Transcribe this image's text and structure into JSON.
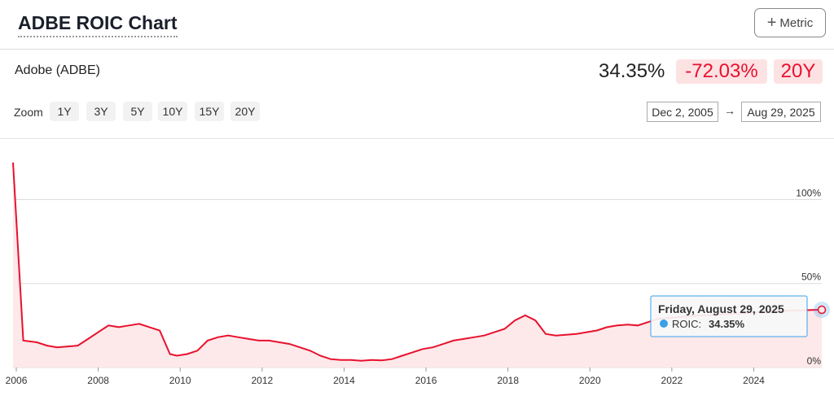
{
  "header": {
    "title": "ADBE ROIC Chart",
    "metric_button": "Metric",
    "plus_icon": "+"
  },
  "summary": {
    "company": "Adobe (ADBE)",
    "current_value": "34.35%",
    "change": "-72.03%",
    "period": "20Y"
  },
  "zoom": {
    "label": "Zoom",
    "options": [
      "1Y",
      "3Y",
      "5Y",
      "10Y",
      "15Y",
      "20Y"
    ],
    "from_date": "Dec 2, 2005",
    "arrow": "→",
    "to_date": "Aug 29, 2025"
  },
  "tooltip": {
    "date": "Friday, August 29, 2025",
    "series_label": "ROIC:",
    "value": "34.35%"
  },
  "colors": {
    "line": "#e8112d",
    "area": "#fde8ea",
    "marker": "#3aa0e8",
    "badge_bg": "#fde2e4"
  },
  "chart_data": {
    "type": "area",
    "series": [
      {
        "name": "ROIC",
        "x": [
          2005.92,
          2006.17,
          2006.5,
          2006.75,
          2007.0,
          2007.5,
          2007.75,
          2008.0,
          2008.25,
          2008.5,
          2008.75,
          2009.0,
          2009.25,
          2009.5,
          2009.75,
          2009.92,
          2010.17,
          2010.42,
          2010.67,
          2010.92,
          2011.17,
          2011.42,
          2011.67,
          2011.92,
          2012.17,
          2012.42,
          2012.67,
          2012.92,
          2013.17,
          2013.42,
          2013.67,
          2013.92,
          2014.17,
          2014.42,
          2014.67,
          2014.92,
          2015.17,
          2015.42,
          2015.67,
          2015.92,
          2016.17,
          2016.42,
          2016.67,
          2016.92,
          2017.17,
          2017.42,
          2017.67,
          2017.92,
          2018.17,
          2018.42,
          2018.67,
          2018.92,
          2019.17,
          2019.42,
          2019.67,
          2019.92,
          2020.17,
          2020.42,
          2020.67,
          2020.92,
          2021.17,
          2021.42,
          2021.67,
          2021.92,
          2022.17,
          2022.42,
          2022.67,
          2022.92,
          2023.17,
          2023.42,
          2023.67,
          2023.92,
          2024.17,
          2024.42,
          2024.67,
          2024.92,
          2025.17,
          2025.42,
          2025.66
        ],
        "values": [
          122,
          16,
          15,
          13,
          12,
          13,
          17,
          21,
          25,
          24,
          25,
          26,
          24,
          22,
          8,
          7,
          8,
          10,
          16,
          18,
          19,
          18,
          17,
          16,
          16,
          15,
          14,
          12,
          10,
          7,
          5,
          4.5,
          4.5,
          4,
          4.5,
          4.2,
          5,
          7,
          9,
          11,
          12,
          14,
          16,
          17,
          18,
          19,
          21,
          23,
          28,
          31,
          28,
          20,
          19,
          19.5,
          20,
          21,
          22,
          24,
          25,
          25.5,
          25,
          27,
          29,
          29.5,
          30,
          30.5,
          31,
          31,
          31.5,
          32,
          32,
          32.5,
          33,
          33,
          33.5,
          34,
          34,
          34.2,
          34.35
        ]
      }
    ],
    "x_ticks": [
      "2006",
      "2008",
      "2010",
      "2012",
      "2014",
      "2016",
      "2018",
      "2020",
      "2022",
      "2024"
    ],
    "y_ticks": [
      "0%",
      "50%",
      "100%"
    ],
    "xlim": [
      2005.92,
      2025.66
    ],
    "ylim": [
      0,
      136
    ],
    "title": "ADBE ROIC Chart",
    "xlabel": "",
    "ylabel": "",
    "grid": true,
    "legend": "none"
  }
}
